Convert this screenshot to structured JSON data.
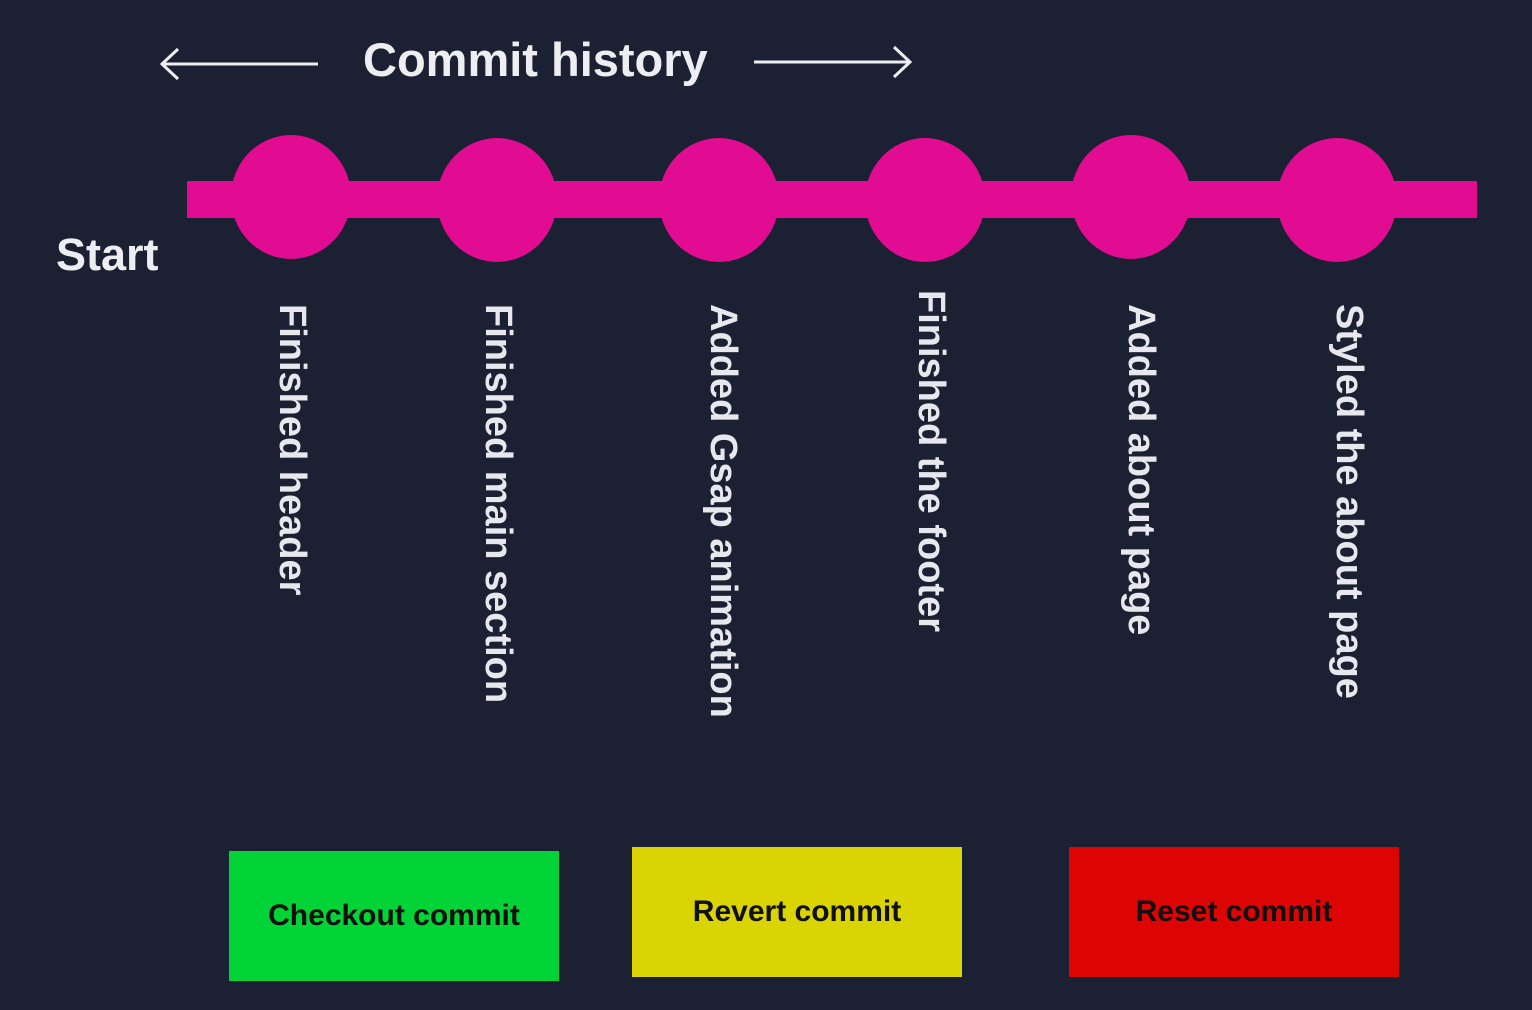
{
  "header": {
    "title": "Commit history",
    "left_arrow_icon": "arrow-left-icon",
    "right_arrow_icon": "arrow-right-icon"
  },
  "timeline": {
    "start_label": "Start",
    "color": "#e20c92",
    "commits": [
      {
        "label": "Finished header"
      },
      {
        "label": "Finished main section"
      },
      {
        "label": "Added Gsap animation"
      },
      {
        "label": "Finished the footer"
      },
      {
        "label": "Added about page"
      },
      {
        "label": "Styled the about page"
      }
    ]
  },
  "actions": {
    "checkout": {
      "label": "Checkout commit",
      "color": "#02d337"
    },
    "revert": {
      "label": "Revert commit",
      "color": "#dad405"
    },
    "reset": {
      "label": "Reset commit",
      "color": "#dd0404"
    }
  }
}
